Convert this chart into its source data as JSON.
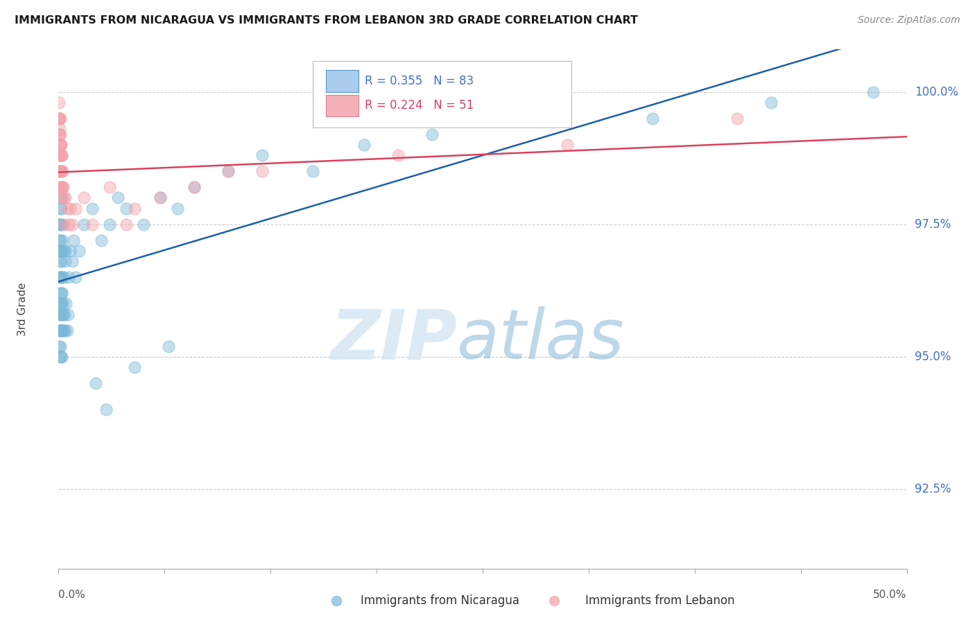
{
  "title": "IMMIGRANTS FROM NICARAGUA VS IMMIGRANTS FROM LEBANON 3RD GRADE CORRELATION CHART",
  "source": "Source: ZipAtlas.com",
  "ylabel": "3rd Grade",
  "yticks": [
    92.5,
    95.0,
    97.5,
    100.0
  ],
  "ytick_labels": [
    "92.5%",
    "95.0%",
    "97.5%",
    "100.0%"
  ],
  "ymin": 91.0,
  "ymax": 100.8,
  "xmin": 0.0,
  "xmax": 50.0,
  "nicaragua_color": "#7ab8d9",
  "lebanon_color": "#f4a0a8",
  "nicaragua_line_color": "#1a5fa8",
  "lebanon_line_color": "#d94060",
  "nicaragua_R": 0.355,
  "nicaragua_N": 83,
  "lebanon_R": 0.224,
  "lebanon_N": 51,
  "watermark_zip_color": "#d8e8f4",
  "watermark_atlas_color": "#88b8d8",
  "grid_color": "#cccccc",
  "title_color": "#1a1a1a",
  "source_color": "#888888",
  "tick_label_color": "#4472c4",
  "nicaragua_x": [
    0.02,
    0.03,
    0.04,
    0.04,
    0.05,
    0.05,
    0.05,
    0.06,
    0.06,
    0.07,
    0.07,
    0.08,
    0.08,
    0.08,
    0.09,
    0.09,
    0.1,
    0.1,
    0.1,
    0.1,
    0.12,
    0.12,
    0.13,
    0.14,
    0.14,
    0.15,
    0.15,
    0.15,
    0.16,
    0.16,
    0.17,
    0.18,
    0.18,
    0.19,
    0.2,
    0.2,
    0.2,
    0.21,
    0.22,
    0.23,
    0.25,
    0.25,
    0.26,
    0.28,
    0.3,
    0.3,
    0.32,
    0.35,
    0.38,
    0.4,
    0.4,
    0.45,
    0.5,
    0.55,
    0.6,
    0.7,
    0.8,
    0.9,
    1.0,
    1.2,
    1.5,
    2.0,
    2.5,
    3.0,
    3.5,
    4.0,
    5.0,
    6.0,
    7.0,
    8.0,
    10.0,
    12.0,
    15.0,
    18.0,
    22.0,
    28.0,
    35.0,
    42.0,
    48.0,
    2.2,
    2.8,
    4.5,
    6.5
  ],
  "nicaragua_y": [
    97.5,
    95.8,
    95.2,
    96.5,
    95.5,
    96.8,
    97.2,
    95.0,
    96.2,
    95.5,
    97.0,
    95.8,
    96.5,
    97.5,
    96.0,
    97.8,
    95.2,
    96.0,
    97.0,
    98.0,
    95.5,
    97.2,
    96.8,
    95.0,
    97.5,
    95.5,
    96.5,
    97.8,
    96.0,
    97.0,
    95.8,
    96.2,
    97.5,
    95.5,
    95.0,
    96.5,
    98.0,
    96.2,
    95.5,
    97.0,
    95.5,
    97.2,
    96.0,
    95.8,
    95.5,
    97.0,
    96.5,
    95.8,
    97.0,
    95.5,
    96.8,
    96.0,
    95.5,
    95.8,
    96.5,
    97.0,
    96.8,
    97.2,
    96.5,
    97.0,
    97.5,
    97.8,
    97.2,
    97.5,
    98.0,
    97.8,
    97.5,
    98.0,
    97.8,
    98.2,
    98.5,
    98.8,
    98.5,
    99.0,
    99.2,
    99.5,
    99.5,
    99.8,
    100.0,
    94.5,
    94.0,
    94.8,
    95.2
  ],
  "lebanon_x": [
    0.02,
    0.03,
    0.04,
    0.04,
    0.05,
    0.05,
    0.06,
    0.06,
    0.07,
    0.07,
    0.08,
    0.08,
    0.09,
    0.09,
    0.1,
    0.1,
    0.1,
    0.12,
    0.12,
    0.13,
    0.14,
    0.15,
    0.15,
    0.16,
    0.17,
    0.18,
    0.2,
    0.2,
    0.22,
    0.25,
    0.28,
    0.3,
    0.35,
    0.4,
    0.5,
    0.6,
    0.7,
    0.8,
    1.0,
    1.5,
    2.0,
    3.0,
    4.0,
    6.0,
    8.0,
    12.0,
    20.0,
    30.0,
    40.0,
    4.5,
    10.0
  ],
  "lebanon_y": [
    99.5,
    99.8,
    99.2,
    99.5,
    98.8,
    99.3,
    98.5,
    99.0,
    98.8,
    99.2,
    98.5,
    99.5,
    98.2,
    99.0,
    98.5,
    99.2,
    99.5,
    98.5,
    99.0,
    98.8,
    98.5,
    98.2,
    99.0,
    98.5,
    98.2,
    98.8,
    98.0,
    98.8,
    98.2,
    98.5,
    98.2,
    98.0,
    97.5,
    98.0,
    97.8,
    97.5,
    97.8,
    97.5,
    97.8,
    98.0,
    97.5,
    98.2,
    97.5,
    98.0,
    98.2,
    98.5,
    98.8,
    99.0,
    99.5,
    97.8,
    98.5
  ],
  "nic_line_x0": 0.0,
  "nic_line_y0": 96.0,
  "nic_line_x1": 50.0,
  "nic_line_y1": 100.0,
  "leb_line_x0": 0.0,
  "leb_line_y0": 98.3,
  "leb_line_x1": 50.0,
  "leb_line_y1": 100.0
}
